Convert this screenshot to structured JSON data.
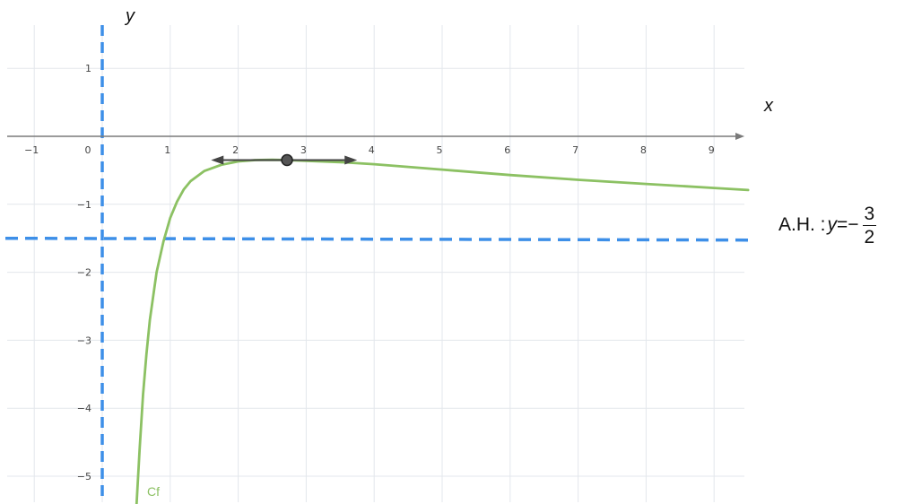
{
  "chart_data": {
    "type": "line",
    "xlabel": "x",
    "ylabel": "y",
    "xlim": [
      -1.4,
      9.5
    ],
    "ylim": [
      -5.4,
      1.9
    ],
    "x_ticks": [
      "-1",
      "0",
      "1",
      "2",
      "3",
      "4",
      "5",
      "6",
      "7",
      "8",
      "9"
    ],
    "y_ticks": [
      "1",
      "-1",
      "-2",
      "-3",
      "-4",
      "-5"
    ],
    "grid": true,
    "series": [
      {
        "name": "Cf",
        "color": "#8cc163",
        "x": [
          0.5,
          0.55,
          0.6,
          0.65,
          0.7,
          0.8,
          0.9,
          1.0,
          1.1,
          1.2,
          1.3,
          1.5,
          1.75,
          2.0,
          2.25,
          2.5,
          2.718,
          3.0,
          3.5,
          4.0,
          4.5,
          5.0,
          5.5,
          6.0,
          7.0,
          8.0,
          9.0,
          9.5
        ],
        "y": [
          -5.5,
          -4.6,
          -3.8,
          -3.2,
          -2.7,
          -2.0,
          -1.55,
          -1.2,
          -0.96,
          -0.78,
          -0.66,
          -0.51,
          -0.42,
          -0.37,
          -0.35,
          -0.345,
          -0.35,
          -0.36,
          -0.38,
          -0.41,
          -0.45,
          -0.49,
          -0.53,
          -0.57,
          -0.64,
          -0.7,
          -0.76,
          -0.79
        ]
      }
    ],
    "vertical_asymptote": {
      "x": 0,
      "style": "dashed",
      "color": "#3d8fe8"
    },
    "horizontal_asymptote": {
      "y": -1.5,
      "style": "dashed",
      "color": "#3d8fe8",
      "label_prefix": "A.H. :",
      "label_var": "y",
      "label_eq": "=",
      "label_sign": "−",
      "label_num": "3",
      "label_den": "2"
    },
    "tangent_point": {
      "x": 2.718,
      "y": -0.35,
      "tangent_from": 1.6,
      "tangent_to": 3.75,
      "color": "#444444"
    },
    "curve_label": "Cf"
  }
}
